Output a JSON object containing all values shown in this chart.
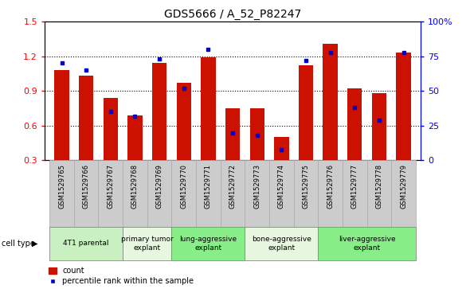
{
  "title": "GDS5666 / A_52_P82247",
  "samples": [
    "GSM1529765",
    "GSM1529766",
    "GSM1529767",
    "GSM1529768",
    "GSM1529769",
    "GSM1529770",
    "GSM1529771",
    "GSM1529772",
    "GSM1529773",
    "GSM1529774",
    "GSM1529775",
    "GSM1529776",
    "GSM1529777",
    "GSM1529778",
    "GSM1529779"
  ],
  "counts": [
    1.08,
    1.03,
    0.84,
    0.69,
    1.14,
    0.97,
    1.19,
    0.75,
    0.75,
    0.5,
    1.12,
    1.31,
    0.92,
    0.88,
    1.23
  ],
  "percentiles": [
    70,
    65,
    35,
    32,
    73,
    52,
    80,
    20,
    18,
    8,
    72,
    78,
    38,
    29,
    78
  ],
  "cell_types": [
    {
      "label": "4T1 parental",
      "start": 0,
      "end": 2,
      "color": "#c8f0c0"
    },
    {
      "label": "primary tumor\nexplant",
      "start": 3,
      "end": 4,
      "color": "#e8f8e0"
    },
    {
      "label": "lung-aggressive\nexplant",
      "start": 5,
      "end": 7,
      "color": "#88ee88"
    },
    {
      "label": "bone-aggressive\nexplant",
      "start": 8,
      "end": 10,
      "color": "#e8f8e0"
    },
    {
      "label": "liver-aggressive\nexplant",
      "start": 11,
      "end": 14,
      "color": "#88ee88"
    }
  ],
  "ylim_left": [
    0.3,
    1.5
  ],
  "ylim_right": [
    0,
    100
  ],
  "yticks_left": [
    0.3,
    0.6,
    0.9,
    1.2,
    1.5
  ],
  "yticks_right": [
    0,
    25,
    50,
    75,
    100
  ],
  "bar_color": "#cc1100",
  "marker_color": "#0000cc",
  "bar_width": 0.6,
  "sample_box_color": "#cccccc",
  "sample_box_edge": "#aaaaaa"
}
